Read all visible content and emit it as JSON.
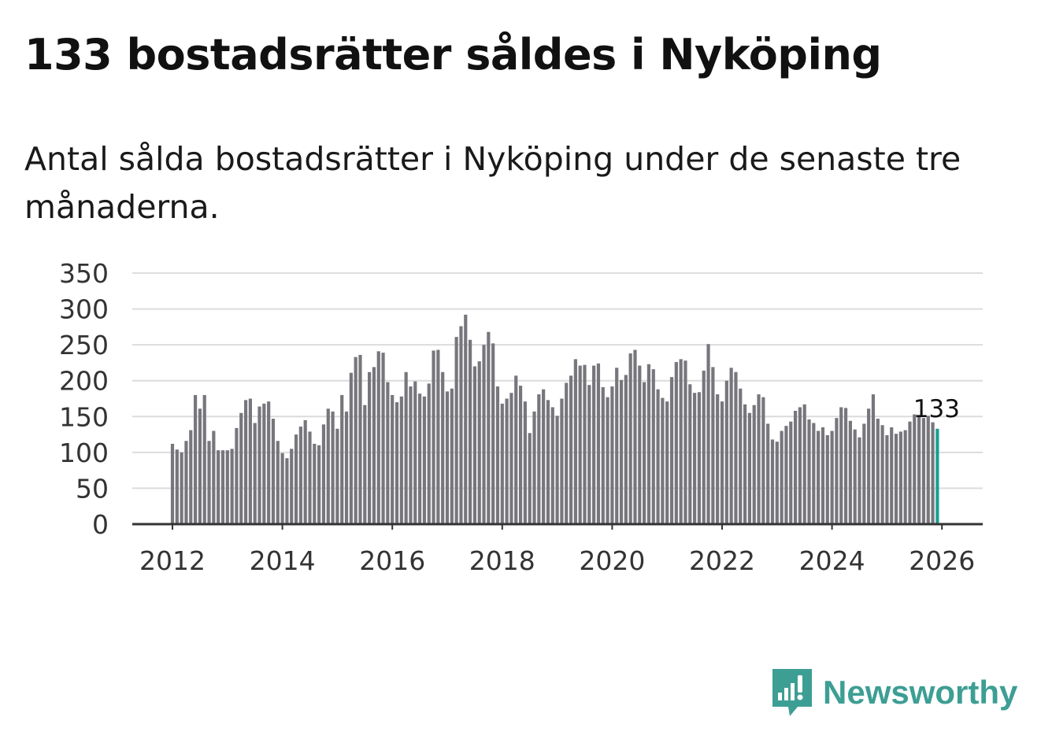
{
  "title": "133 bostadsrätter såldes i Nyköping",
  "subtitle": "Antal sålda bostadsrätter i Nyköping under de senaste tre månaderna.",
  "brand": {
    "name": "Newsworthy",
    "color": "#3d9e94"
  },
  "chart_data": {
    "type": "bar",
    "title": "133 bostadsrätter såldes i Nyköping",
    "xlabel": "",
    "ylabel": "",
    "ylim": [
      0,
      350
    ],
    "yticks": [
      0,
      50,
      100,
      150,
      200,
      250,
      300,
      350
    ],
    "xticks": [
      "2012",
      "2014",
      "2016",
      "2018",
      "2020",
      "2022",
      "2024",
      "2026"
    ],
    "x_start_year": 2012,
    "grid": true,
    "bar_color": "#77767c",
    "highlight_color": "#1a9e96",
    "annotation": {
      "label": "133",
      "target": "last"
    },
    "values": [
      112,
      104,
      100,
      116,
      131,
      180,
      161,
      180,
      116,
      130,
      103,
      103,
      103,
      105,
      134,
      155,
      173,
      175,
      141,
      164,
      168,
      171,
      147,
      116,
      99,
      92,
      105,
      125,
      136,
      145,
      129,
      112,
      110,
      139,
      161,
      157,
      133,
      180,
      157,
      211,
      233,
      236,
      166,
      212,
      219,
      241,
      239,
      198,
      180,
      170,
      178,
      212,
      192,
      199,
      182,
      178,
      196,
      242,
      243,
      212,
      185,
      189,
      261,
      276,
      292,
      257,
      220,
      227,
      250,
      268,
      252,
      192,
      168,
      175,
      183,
      207,
      193,
      171,
      127,
      157,
      181,
      188,
      173,
      163,
      151,
      175,
      197,
      207,
      230,
      221,
      222,
      194,
      221,
      224,
      191,
      177,
      192,
      218,
      201,
      208,
      238,
      243,
      221,
      198,
      223,
      216,
      188,
      176,
      171,
      205,
      226,
      230,
      228,
      195,
      183,
      184,
      214,
      251,
      219,
      181,
      171,
      200,
      218,
      212,
      189,
      167,
      155,
      166,
      181,
      177,
      140,
      118,
      115,
      130,
      137,
      143,
      158,
      163,
      167,
      146,
      141,
      130,
      135,
      124,
      130,
      148,
      163,
      162,
      144,
      132,
      121,
      140,
      161,
      181,
      147,
      138,
      124,
      135,
      126,
      129,
      131,
      143,
      153,
      151,
      148,
      151,
      142,
      133
    ]
  }
}
